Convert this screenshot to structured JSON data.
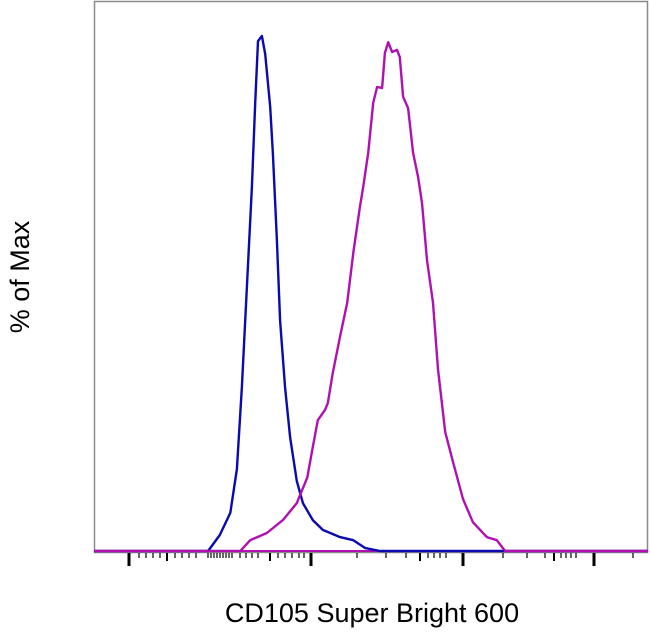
{
  "chart_data": {
    "type": "line",
    "title": "",
    "xlabel": "CD105 Super Bright 600",
    "ylabel": "% of Max",
    "x_scale": "log (biexponential), tick labels not shown",
    "xlim": [
      0,
      1000
    ],
    "ylim": [
      0,
      100
    ],
    "grid": false,
    "legend": "none",
    "series": [
      {
        "color": "#0a0ab0",
        "x": [
          206,
          227,
          246,
          258,
          267,
          276,
          285,
          291,
          296,
          303,
          309,
          318,
          323,
          330,
          336,
          345,
          354,
          366,
          377,
          395,
          413,
          444,
          468,
          489,
          516
        ],
        "y": [
          0,
          3.1,
          7.4,
          15.9,
          31.9,
          51.3,
          70.7,
          87.0,
          99.0,
          100,
          96.5,
          86.2,
          77.1,
          60.8,
          44.7,
          31.7,
          22.1,
          13.6,
          9.3,
          6.0,
          4.1,
          2.7,
          2.1,
          0.6,
          0
        ]
      },
      {
        "color": "#b010b0",
        "x": [
          264,
          282,
          312,
          341,
          366,
          385,
          395,
          404,
          417,
          422,
          431,
          444,
          457,
          468,
          480,
          486,
          495,
          504,
          511,
          520,
          525,
          531,
          538,
          547,
          552,
          558,
          567,
          576,
          585,
          592,
          601,
          612,
          621,
          634,
          648,
          666,
          684,
          709,
          727,
          742
        ],
        "y": [
          0,
          2.1,
          3.5,
          6.0,
          9.3,
          14.3,
          20.2,
          25.4,
          27.4,
          28.7,
          34.6,
          41.6,
          48.2,
          57.9,
          66.8,
          70.7,
          77.3,
          87.0,
          90.1,
          89.9,
          96.7,
          98.8,
          96.9,
          97.3,
          95.9,
          88.2,
          86.0,
          77.3,
          72.6,
          67.6,
          56.5,
          48.2,
          35.3,
          23.1,
          17.3,
          10.1,
          5.6,
          2.7,
          2.1,
          0
        ]
      }
    ]
  }
}
